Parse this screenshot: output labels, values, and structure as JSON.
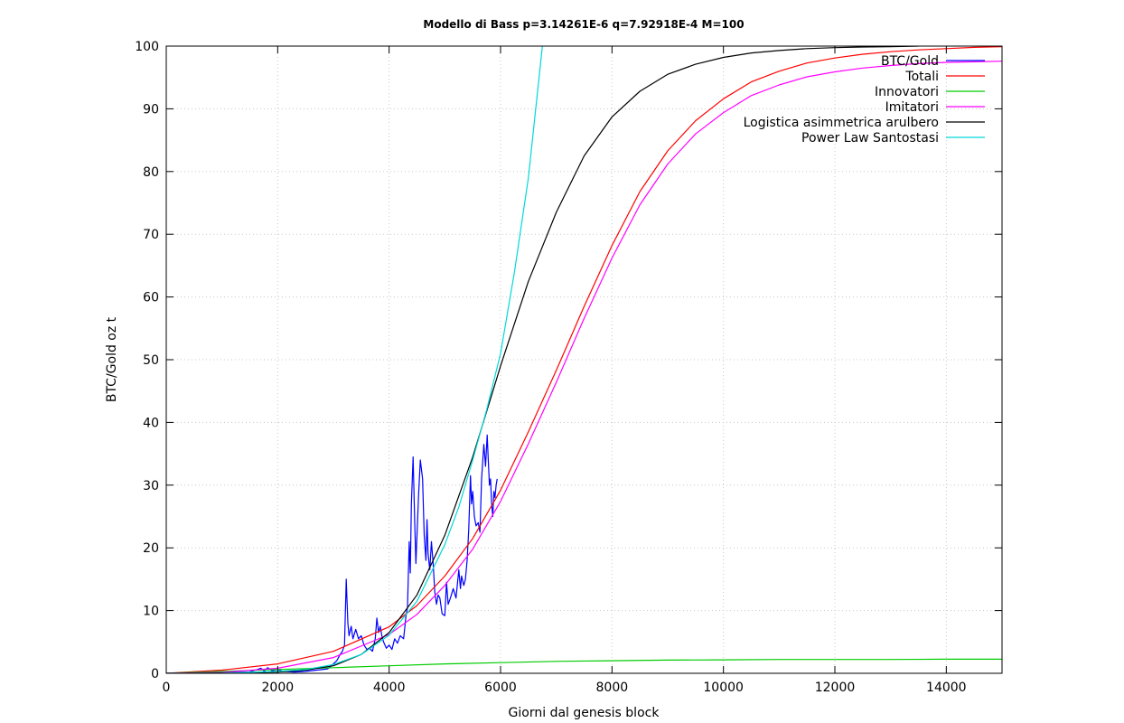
{
  "chart_data": {
    "type": "line",
    "title": "Modello di Bass p=3.14261E-6 q=7.92918E-4 M=100",
    "xlabel": "Giorni dal genesis block",
    "ylabel": "BTC/Gold oz t",
    "xlim": [
      0,
      15000
    ],
    "ylim": [
      0,
      100
    ],
    "xticks": [
      0,
      2000,
      4000,
      6000,
      8000,
      10000,
      12000,
      14000
    ],
    "yticks": [
      0,
      10,
      20,
      30,
      40,
      50,
      60,
      70,
      80,
      90,
      100
    ],
    "grid": true,
    "legend_position": "top-right",
    "series": [
      {
        "name": "BTC/Gold",
        "color": "#0000ff",
        "x": [
          0,
          1500,
          1700,
          1760,
          1820,
          1900,
          2000,
          2100,
          2300,
          2500,
          2700,
          2900,
          3000,
          3060,
          3120,
          3160,
          3200,
          3230,
          3260,
          3280,
          3320,
          3350,
          3400,
          3450,
          3500,
          3550,
          3600,
          3650,
          3700,
          3750,
          3780,
          3810,
          3840,
          3870,
          3900,
          3950,
          4000,
          4050,
          4100,
          4150,
          4200,
          4260,
          4300,
          4330,
          4360,
          4380,
          4400,
          4430,
          4460,
          4480,
          4500,
          4530,
          4560,
          4600,
          4630,
          4660,
          4680,
          4700,
          4730,
          4760,
          4790,
          4820,
          4850,
          4880,
          4910,
          4950,
          5000,
          5030,
          5060,
          5100,
          5150,
          5200,
          5250,
          5280,
          5300,
          5340,
          5370,
          5400,
          5430,
          5460,
          5480,
          5500,
          5530,
          5560,
          5600,
          5630,
          5660,
          5700,
          5730,
          5760,
          5780,
          5800,
          5820,
          5840,
          5860,
          5880,
          5900,
          5920,
          5940
        ],
        "y": [
          0,
          0.2,
          0.8,
          0.3,
          0.9,
          0.4,
          0.6,
          0.3,
          0.2,
          0.3,
          0.5,
          0.7,
          1.5,
          2.0,
          3.0,
          3.5,
          4.5,
          15.0,
          8.0,
          6.0,
          7.5,
          5.5,
          7.0,
          5.5,
          6.0,
          4.5,
          3.8,
          4.0,
          3.5,
          5.5,
          8.8,
          6.5,
          7.5,
          6.0,
          5.0,
          4.0,
          4.5,
          3.8,
          5.5,
          4.8,
          6.0,
          5.5,
          9.0,
          10.5,
          21.0,
          16.0,
          27.0,
          34.5,
          24.0,
          17.5,
          22.0,
          28.5,
          34.0,
          31.0,
          22.0,
          18.0,
          24.5,
          19.0,
          16.5,
          21.0,
          17.5,
          13.0,
          11.0,
          12.5,
          12.0,
          9.5,
          9.2,
          14.5,
          11.0,
          12.0,
          13.5,
          12.0,
          16.5,
          13.5,
          15.5,
          14.0,
          15.0,
          18.0,
          23.0,
          31.5,
          27.0,
          29.0,
          25.0,
          23.5,
          24.0,
          22.5,
          31.0,
          36.5,
          33.0,
          38.0,
          34.0,
          30.0,
          31.0,
          27.0,
          25.0,
          29.0,
          28.0,
          30.0,
          31.0
        ]
      },
      {
        "name": "Totali",
        "color": "#ff0000",
        "x": [
          0,
          1000,
          2000,
          3000,
          4000,
          4500,
          5000,
          5500,
          6000,
          6500,
          7000,
          7500,
          8000,
          8500,
          9000,
          9500,
          10000,
          10500,
          11000,
          11500,
          12000,
          12500,
          13000,
          13500,
          14000,
          14500,
          15000
        ],
        "y": [
          0,
          0.5,
          1.5,
          3.5,
          7.4,
          10.8,
          15.5,
          21.5,
          29.2,
          38.5,
          48.3,
          58.5,
          68.2,
          76.8,
          83.3,
          88.1,
          91.6,
          94.3,
          96.0,
          97.3,
          98.1,
          98.7,
          99.1,
          99.4,
          99.6,
          99.8,
          99.9
        ]
      },
      {
        "name": "Innovatori",
        "color": "#00cc00",
        "x": [
          0,
          1000,
          2000,
          3000,
          4000,
          5000,
          6000,
          7000,
          8000,
          9000,
          10000,
          11000,
          12000,
          13000,
          14000,
          15000
        ],
        "y": [
          0,
          0.3,
          0.6,
          0.9,
          1.2,
          1.5,
          1.7,
          1.9,
          2.0,
          2.1,
          2.15,
          2.2,
          2.2,
          2.2,
          2.25,
          2.25
        ]
      },
      {
        "name": "Imitatori",
        "color": "#ff00ff",
        "x": [
          0,
          1000,
          2000,
          3000,
          4000,
          4500,
          5000,
          5500,
          6000,
          6500,
          7000,
          7500,
          8000,
          8500,
          9000,
          9500,
          10000,
          10500,
          11000,
          11500,
          12000,
          12500,
          13000,
          13500,
          14000,
          14500,
          15000
        ],
        "y": [
          0,
          0.15,
          0.8,
          2.5,
          6.2,
          9.4,
          14.0,
          19.8,
          27.4,
          36.6,
          46.4,
          56.6,
          66.2,
          74.7,
          81.2,
          86.0,
          89.4,
          92.1,
          93.8,
          95.1,
          95.9,
          96.5,
          96.9,
          97.2,
          97.4,
          97.5,
          97.6
        ]
      },
      {
        "name": "Logistica asimmetrica arulbero",
        "color": "#000000",
        "x": [
          0,
          1000,
          2000,
          2500,
          3000,
          3500,
          4000,
          4500,
          5000,
          5500,
          6000,
          6500,
          7000,
          7500,
          8000,
          8500,
          9000,
          9500,
          10000,
          10500,
          11000,
          11500,
          12000,
          12500,
          13000,
          13500
        ],
        "y": [
          0,
          0.05,
          0.2,
          0.5,
          1.2,
          3.0,
          6.5,
          12.5,
          22.0,
          34.5,
          49.0,
          62.5,
          73.5,
          82.5,
          88.7,
          92.8,
          95.5,
          97.1,
          98.2,
          98.9,
          99.3,
          99.6,
          99.75,
          99.85,
          99.9,
          100.0
        ]
      },
      {
        "name": "Power Law Santostasi",
        "color": "#00d8d8",
        "x": [
          0,
          1000,
          2000,
          2500,
          3000,
          3500,
          4000,
          4500,
          5000,
          5250,
          5500,
          5750,
          6000,
          6250,
          6500,
          6750
        ],
        "y": [
          0,
          0.02,
          0.3,
          0.6,
          1.4,
          3.0,
          6.1,
          11.5,
          20.5,
          26.5,
          34.0,
          42.0,
          51.0,
          64.0,
          79.0,
          100.0
        ]
      }
    ]
  }
}
